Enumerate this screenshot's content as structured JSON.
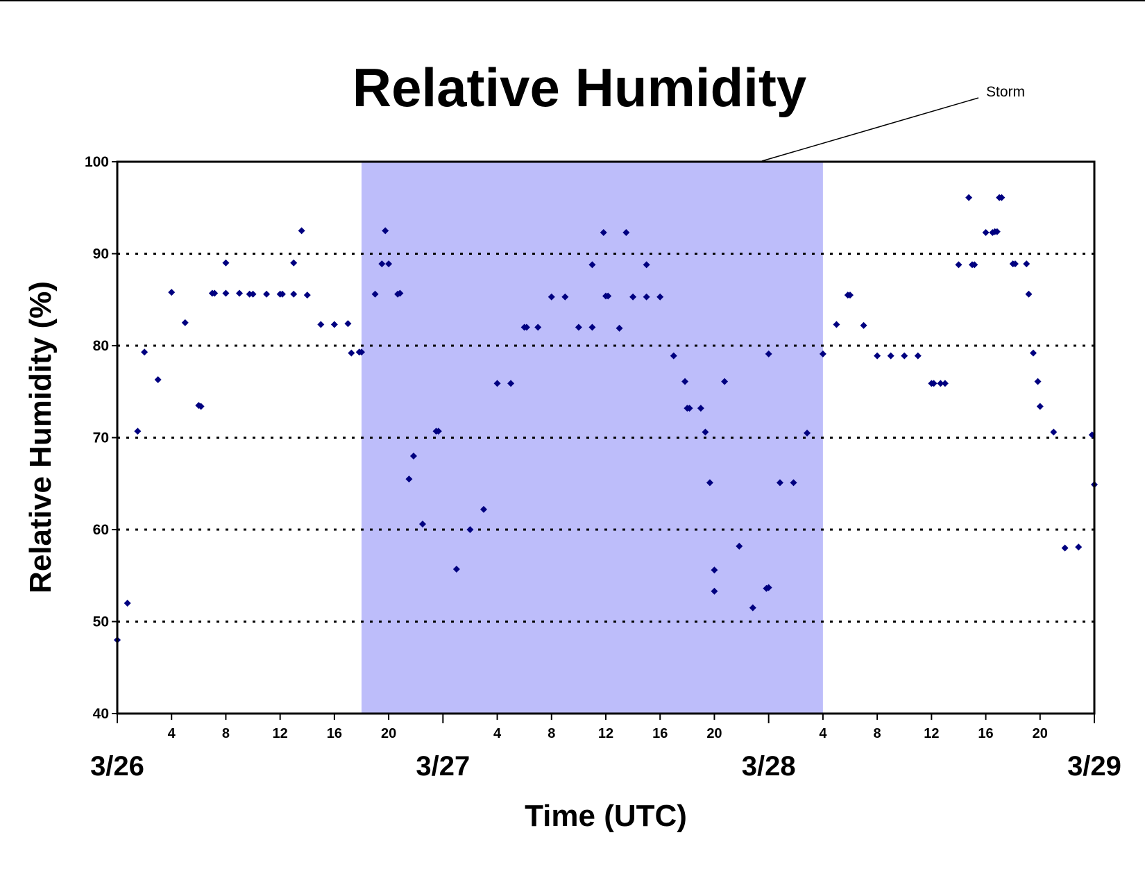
{
  "chart_data": {
    "type": "scatter",
    "title": "Relative Humidity",
    "xlabel": "Time (UTC)",
    "ylabel": "Relative Humidity (%)",
    "ylim": [
      40,
      100
    ],
    "yticks": [
      "40",
      "50",
      "60",
      "70",
      "80",
      "90",
      "100"
    ],
    "xlim": [
      "3/26 00:00",
      "3/29 00:00"
    ],
    "x_hour_ticks": [
      "4",
      "8",
      "12",
      "16",
      "20"
    ],
    "date_labels": [
      "3/26",
      "3/27",
      "3/28",
      "3/29"
    ],
    "grid": "dotted horizontal lines at 50, 60, 70, 80, 90",
    "legend": "none",
    "marker_color": "#000080",
    "shaded_region": {
      "label": "Storm",
      "start": "3/26 18:00",
      "end": "3/28 04:00",
      "color": "#bdbdfa"
    },
    "annotation": "Storm",
    "series": [
      {
        "x": [
          "3/26 00:00",
          "3/26 00:45",
          "3/26 01:30",
          "3/26 02:00",
          "3/26 03:00",
          "3/26 04:00",
          "3/26 05:00",
          "3/26 06:00",
          "3/26 06:10",
          "3/26 07:00",
          "3/26 07:10",
          "3/26 08:00",
          "3/26 08:00",
          "3/26 09:00",
          "3/26 09:45",
          "3/26 10:00",
          "3/26 11:00",
          "3/26 12:00",
          "3/26 12:10",
          "3/26 13:00",
          "3/26 13:00",
          "3/26 13:35",
          "3/26 14:00",
          "3/26 15:00",
          "3/26 16:00",
          "3/26 17:00",
          "3/26 17:15",
          "3/26 17:50",
          "3/26 18:00",
          "3/26 19:00",
          "3/26 19:30",
          "3/26 19:45",
          "3/26 20:00",
          "3/26 20:40",
          "3/26 20:50",
          "3/26 21:30",
          "3/26 21:50",
          "3/26 22:30",
          "3/26 23:30",
          "3/26 23:40",
          "3/27 01:00",
          "3/27 02:00",
          "3/27 03:00",
          "3/27 04:00",
          "3/27 05:00",
          "3/27 06:00",
          "3/27 06:10",
          "3/27 07:00",
          "3/27 08:00",
          "3/27 09:00",
          "3/27 10:00",
          "3/27 11:00",
          "3/27 11:00",
          "3/27 11:50",
          "3/27 12:00",
          "3/27 12:10",
          "3/27 13:00",
          "3/27 13:30",
          "3/27 14:00",
          "3/27 15:00",
          "3/27 15:00",
          "3/27 16:00",
          "3/27 17:00",
          "3/27 17:50",
          "3/27 18:00",
          "3/27 18:10",
          "3/27 19:00",
          "3/27 19:20",
          "3/27 19:40",
          "3/27 20:00",
          "3/27 20:00",
          "3/27 20:45",
          "3/27 21:50",
          "3/27 22:50",
          "3/27 23:50",
          "3/28 00:00",
          "3/28 00:50",
          "3/28 01:50",
          "3/28 02:50",
          "3/28 00:00",
          "3/28 04:00",
          "3/28 05:00",
          "3/28 05:50",
          "3/28 06:00",
          "3/28 07:00",
          "3/28 08:00",
          "3/28 09:00",
          "3/28 10:00",
          "3/28 11:00",
          "3/28 12:00",
          "3/28 12:10",
          "3/28 12:40",
          "3/28 13:00",
          "3/28 14:00",
          "3/28 14:45",
          "3/28 15:00",
          "3/28 15:10",
          "3/28 16:00",
          "3/28 16:30",
          "3/28 16:40",
          "3/28 16:50",
          "3/28 17:00",
          "3/28 17:10",
          "3/28 18:00",
          "3/28 18:10",
          "3/28 19:00",
          "3/28 19:10",
          "3/28 19:30",
          "3/28 19:50",
          "3/28 20:00",
          "3/28 21:00",
          "3/28 21:50",
          "3/28 22:50",
          "3/28 23:50",
          "3/29 00:00"
        ],
        "y": [
          48,
          52,
          70.7,
          79.3,
          76.3,
          85.8,
          82.5,
          73.5,
          73.4,
          85.7,
          85.7,
          89,
          85.7,
          85.7,
          85.6,
          85.6,
          85.6,
          85.6,
          85.6,
          85.6,
          89,
          92.5,
          85.5,
          82.3,
          82.3,
          82.4,
          79.2,
          79.3,
          79.3,
          85.6,
          88.9,
          92.5,
          88.9,
          85.6,
          85.7,
          65.5,
          68,
          60.6,
          70.7,
          70.7,
          55.7,
          60,
          62.2,
          75.9,
          75.9,
          82,
          82,
          82,
          85.3,
          85.3,
          82,
          82,
          88.8,
          92.3,
          85.4,
          85.4,
          81.9,
          92.3,
          85.3,
          85.3,
          88.8,
          85.3,
          78.9,
          76.1,
          73.2,
          73.2,
          73.2,
          70.6,
          65.1,
          55.6,
          53.3,
          76.1,
          58.2,
          51.5,
          53.6,
          53.7,
          65.1,
          65.1,
          70.5,
          79.1,
          79.1,
          82.3,
          85.5,
          85.5,
          82.2,
          78.9,
          78.9,
          78.9,
          78.9,
          75.9,
          75.9,
          75.9,
          75.9,
          88.8,
          96.1,
          88.8,
          88.8,
          92.3,
          92.3,
          92.4,
          92.4,
          96.1,
          96.1,
          88.9,
          88.9,
          88.9,
          85.6,
          79.2,
          76.1,
          73.4,
          70.6,
          58,
          58.1,
          70.3,
          64.9
        ]
      }
    ]
  }
}
